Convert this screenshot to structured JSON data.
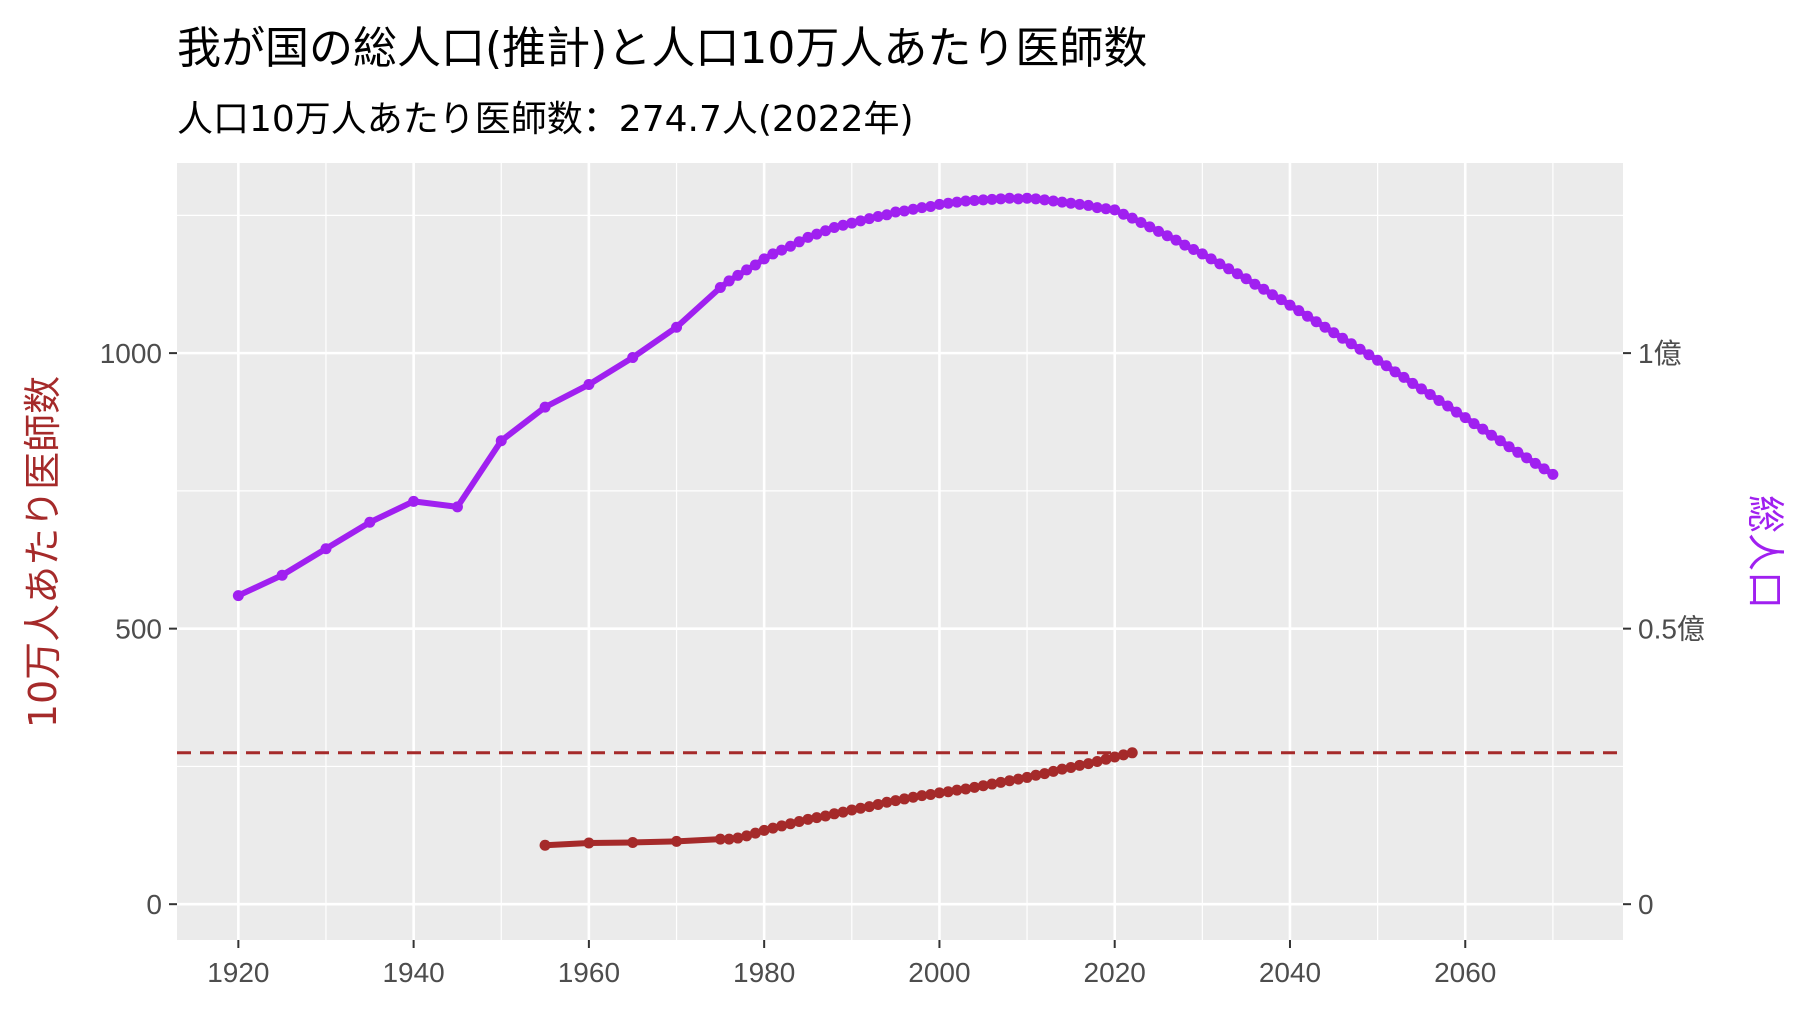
{
  "title": "我が国の総人口(推計)と人口10万人あたり医師数",
  "subtitle": "人口10万人あたり医師数：274.7人(2022年)",
  "colors": {
    "doctors": "#a52a2a",
    "population": "#a020f0",
    "panel": "#ebebeb",
    "grid": "#ffffff"
  },
  "chart_data": {
    "type": "line",
    "xlabel": "",
    "ylabel_left": "10万人あたり医師数",
    "ylabel_right": "総人口",
    "xlim": [
      1913,
      2078
    ],
    "ylim": [
      -65,
      1345
    ],
    "x_ticks": [
      1920,
      1940,
      1960,
      1980,
      2000,
      2020,
      2040,
      2060
    ],
    "y_ticks_left": [
      0,
      500,
      1000
    ],
    "y_ticks_right": [
      {
        "label": "0",
        "value": 0
      },
      {
        "label": "0.5億",
        "value": 500
      },
      {
        "label": "1億",
        "value": 1000
      }
    ],
    "reference_line": {
      "y": 274.7,
      "style": "dashed",
      "series": "doctors"
    },
    "grid": true,
    "series": [
      {
        "name": "10万人あたり医師数",
        "color": "#a52a2a",
        "points": [
          [
            1955,
            107
          ],
          [
            1960,
            111
          ],
          [
            1965,
            112
          ],
          [
            1970,
            114
          ],
          [
            1975,
            118
          ],
          [
            1976,
            118
          ],
          [
            1977,
            120
          ],
          [
            1978,
            124
          ],
          [
            1979,
            129
          ],
          [
            1980,
            134
          ],
          [
            1981,
            138
          ],
          [
            1982,
            142
          ],
          [
            1983,
            146
          ],
          [
            1984,
            150
          ],
          [
            1985,
            154
          ],
          [
            1986,
            157
          ],
          [
            1987,
            160
          ],
          [
            1988,
            164
          ],
          [
            1989,
            167
          ],
          [
            1990,
            171
          ],
          [
            1991,
            174
          ],
          [
            1992,
            177
          ],
          [
            1993,
            181
          ],
          [
            1994,
            185
          ],
          [
            1995,
            188
          ],
          [
            1996,
            191
          ],
          [
            1997,
            194
          ],
          [
            1998,
            197
          ],
          [
            1999,
            199
          ],
          [
            2000,
            202
          ],
          [
            2001,
            204
          ],
          [
            2002,
            207
          ],
          [
            2003,
            209
          ],
          [
            2004,
            212
          ],
          [
            2005,
            215
          ],
          [
            2006,
            218
          ],
          [
            2007,
            221
          ],
          [
            2008,
            224
          ],
          [
            2009,
            227
          ],
          [
            2010,
            230
          ],
          [
            2011,
            234
          ],
          [
            2012,
            237
          ],
          [
            2013,
            241
          ],
          [
            2014,
            245
          ],
          [
            2015,
            248
          ],
          [
            2016,
            252
          ],
          [
            2017,
            255
          ],
          [
            2018,
            259
          ],
          [
            2019,
            263
          ],
          [
            2020,
            267
          ],
          [
            2021,
            271
          ],
          [
            2022,
            274.7
          ]
        ]
      },
      {
        "name": "総人口",
        "color": "#a020f0",
        "points": [
          [
            1920,
            560
          ],
          [
            1925,
            597
          ],
          [
            1930,
            645
          ],
          [
            1935,
            693
          ],
          [
            1940,
            731
          ],
          [
            1945,
            721
          ],
          [
            1950,
            841
          ],
          [
            1955,
            902
          ],
          [
            1960,
            943
          ],
          [
            1965,
            992
          ],
          [
            1970,
            1047
          ],
          [
            1975,
            1119
          ],
          [
            1976,
            1131
          ],
          [
            1977,
            1141
          ],
          [
            1978,
            1151
          ],
          [
            1979,
            1160
          ],
          [
            1980,
            1171
          ],
          [
            1981,
            1180
          ],
          [
            1982,
            1187
          ],
          [
            1983,
            1194
          ],
          [
            1984,
            1202
          ],
          [
            1985,
            1210
          ],
          [
            1986,
            1216
          ],
          [
            1987,
            1222
          ],
          [
            1988,
            1228
          ],
          [
            1989,
            1232
          ],
          [
            1990,
            1236
          ],
          [
            1991,
            1240
          ],
          [
            1992,
            1244
          ],
          [
            1993,
            1248
          ],
          [
            1994,
            1251
          ],
          [
            1995,
            1256
          ],
          [
            1996,
            1258
          ],
          [
            1997,
            1261
          ],
          [
            1998,
            1264
          ],
          [
            1999,
            1266
          ],
          [
            2000,
            1270
          ],
          [
            2001,
            1272
          ],
          [
            2002,
            1274
          ],
          [
            2003,
            1276
          ],
          [
            2004,
            1277
          ],
          [
            2005,
            1278
          ],
          [
            2006,
            1279
          ],
          [
            2007,
            1280
          ],
          [
            2008,
            1281
          ],
          [
            2009,
            1280
          ],
          [
            2010,
            1281
          ],
          [
            2011,
            1280
          ],
          [
            2012,
            1278
          ],
          [
            2013,
            1276
          ],
          [
            2014,
            1274
          ],
          [
            2015,
            1272
          ],
          [
            2016,
            1270
          ],
          [
            2017,
            1268
          ],
          [
            2018,
            1264
          ],
          [
            2019,
            1262
          ],
          [
            2020,
            1260
          ],
          [
            2021,
            1252
          ],
          [
            2022,
            1245
          ],
          [
            2023,
            1237
          ],
          [
            2024,
            1229
          ],
          [
            2025,
            1221
          ],
          [
            2026,
            1213
          ],
          [
            2027,
            1205
          ],
          [
            2028,
            1196
          ],
          [
            2029,
            1188
          ],
          [
            2030,
            1180
          ],
          [
            2031,
            1171
          ],
          [
            2032,
            1162
          ],
          [
            2033,
            1153
          ],
          [
            2034,
            1144
          ],
          [
            2035,
            1135
          ],
          [
            2036,
            1125
          ],
          [
            2037,
            1116
          ],
          [
            2038,
            1106
          ],
          [
            2039,
            1097
          ],
          [
            2040,
            1087
          ],
          [
            2041,
            1077
          ],
          [
            2042,
            1067
          ],
          [
            2043,
            1057
          ],
          [
            2044,
            1047
          ],
          [
            2045,
            1037
          ],
          [
            2046,
            1027
          ],
          [
            2047,
            1017
          ],
          [
            2048,
            1007
          ],
          [
            2049,
            997
          ],
          [
            2050,
            987
          ],
          [
            2051,
            977
          ],
          [
            2052,
            966
          ],
          [
            2053,
            956
          ],
          [
            2054,
            945
          ],
          [
            2055,
            935
          ],
          [
            2056,
            925
          ],
          [
            2057,
            914
          ],
          [
            2058,
            904
          ],
          [
            2059,
            893
          ],
          [
            2060,
            883
          ],
          [
            2061,
            872
          ],
          [
            2062,
            862
          ],
          [
            2063,
            851
          ],
          [
            2064,
            841
          ],
          [
            2065,
            830
          ],
          [
            2066,
            820
          ],
          [
            2067,
            810
          ],
          [
            2068,
            800
          ],
          [
            2069,
            790
          ],
          [
            2070,
            780
          ]
        ]
      }
    ]
  }
}
